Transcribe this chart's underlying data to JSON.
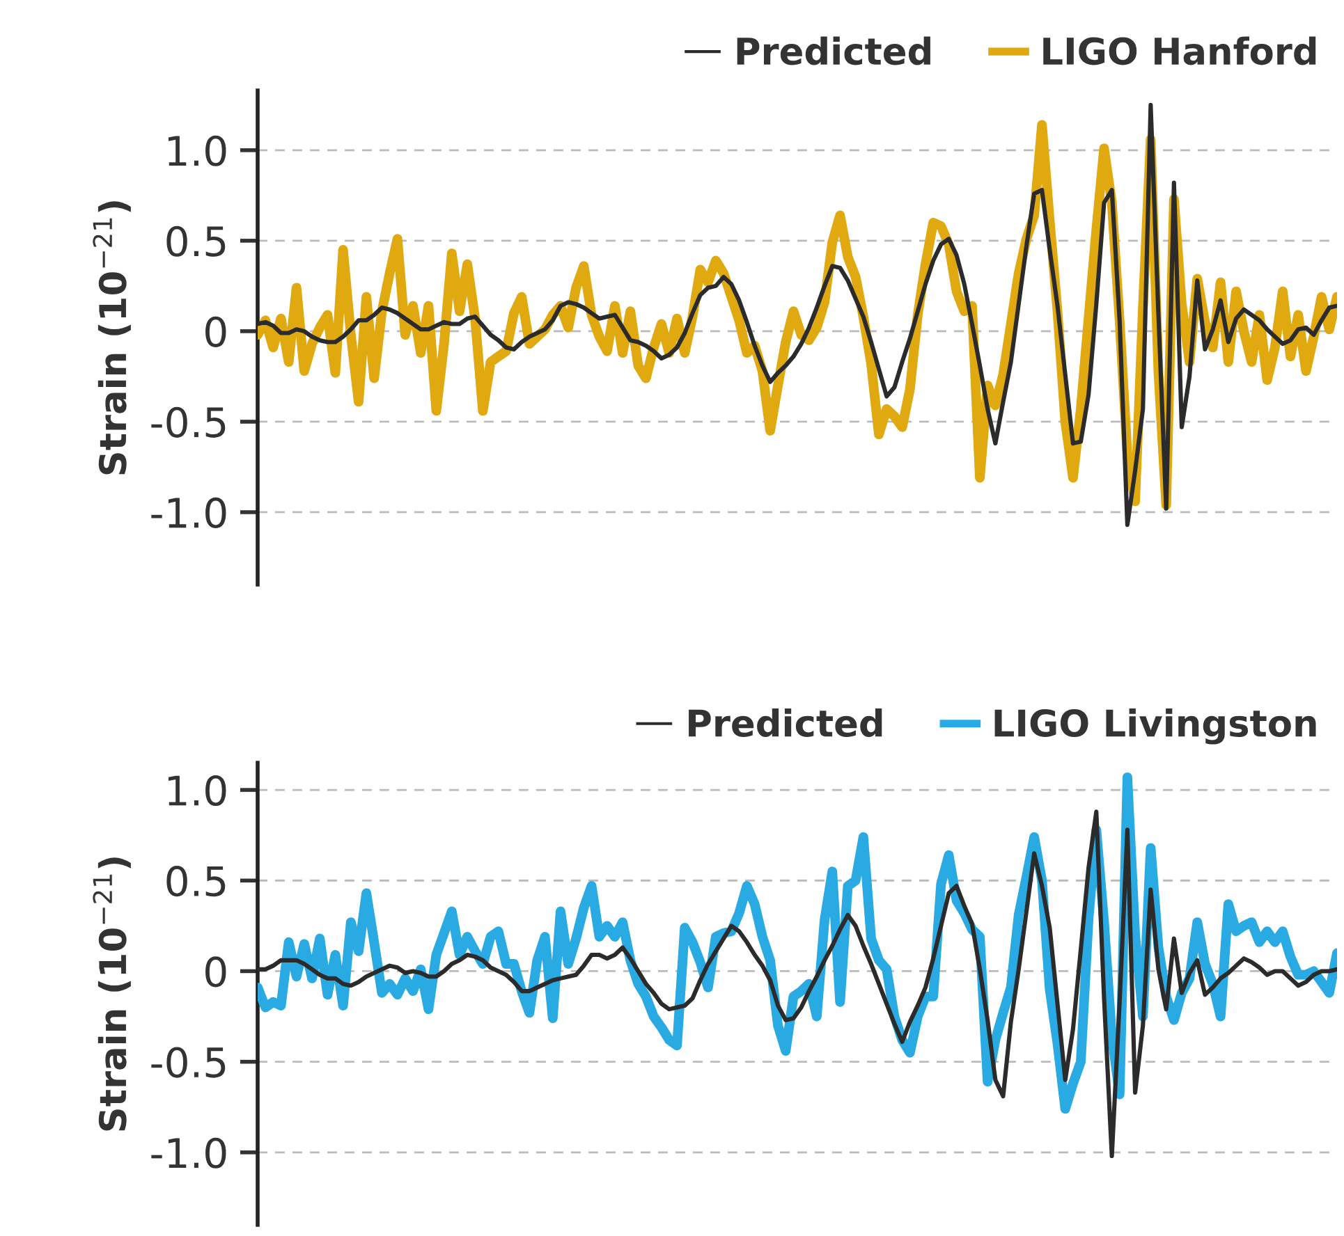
{
  "chart_data": [
    {
      "type": "line",
      "ylabel": "Strain (10$^{−21}$)",
      "ylim": [
        -1.4,
        1.33
      ],
      "categories": [
        null,
        null,
        null,
        null,
        null,
        null,
        null,
        null,
        null,
        null,
        null,
        null,
        null,
        null,
        null,
        null,
        null,
        null,
        null,
        null,
        null,
        null,
        null,
        null,
        null,
        null,
        null,
        null,
        null,
        null,
        null,
        null,
        null,
        null,
        null,
        null,
        null,
        null,
        null,
        null,
        null,
        null,
        null,
        null,
        null,
        null,
        null,
        null,
        null,
        null,
        null,
        null,
        null,
        null,
        null,
        null,
        null,
        null,
        null,
        null,
        null,
        null,
        null,
        null,
        null,
        null,
        null,
        null,
        null,
        null,
        null,
        null,
        null,
        null,
        null,
        null,
        null,
        null,
        null,
        null,
        null,
        null,
        null,
        null,
        null,
        null,
        null,
        null,
        null,
        null,
        null,
        null,
        null,
        null,
        null,
        null,
        null,
        null,
        null,
        null,
        null,
        null,
        null,
        null,
        null,
        null,
        null,
        null,
        null,
        null,
        null,
        null,
        null,
        null,
        null,
        null,
        null,
        null,
        null,
        null,
        null,
        null,
        null,
        null,
        null,
        null,
        null,
        null,
        null,
        null,
        null,
        null,
        null,
        null,
        null,
        null,
        null,
        null,
        null,
        null
      ],
      "yticks": [
        {
          "value": -1.0,
          "label": "-1.0"
        },
        {
          "value": -0.5,
          "label": "-0.5"
        },
        {
          "value": 0,
          "label": "0"
        },
        {
          "value": 0.5,
          "label": "0.5"
        },
        {
          "value": 1.0,
          "label": "1.0"
        }
      ],
      "tick_labels": "y",
      "grid": "y",
      "legend": "top right",
      "marker": "none",
      "line_style": "solid",
      "series": [
        {
          "name": "Predicted",
          "color": "#2b2b2b",
          "values": [
            0.04,
            0.05,
            0.03,
            -0.01,
            -0.01,
            0.01,
            0.0,
            -0.03,
            -0.05,
            -0.06,
            -0.06,
            -0.03,
            0.01,
            0.06,
            0.06,
            0.09,
            0.13,
            0.12,
            0.1,
            0.07,
            0.04,
            0.01,
            0.01,
            0.03,
            0.05,
            0.04,
            0.04,
            0.07,
            0.08,
            0.03,
            -0.02,
            -0.05,
            -0.09,
            -0.1,
            -0.06,
            -0.03,
            -0.01,
            0.01,
            0.06,
            0.14,
            0.16,
            0.15,
            0.13,
            0.1,
            0.07,
            0.08,
            0.09,
            0.02,
            -0.05,
            -0.06,
            -0.08,
            -0.11,
            -0.15,
            -0.13,
            -0.09,
            -0.01,
            0.1,
            0.2,
            0.24,
            0.25,
            0.3,
            0.26,
            0.17,
            0.05,
            -0.08,
            -0.19,
            -0.28,
            -0.23,
            -0.19,
            -0.14,
            -0.07,
            0.02,
            0.13,
            0.25,
            0.36,
            0.35,
            0.28,
            0.18,
            0.08,
            -0.06,
            -0.21,
            -0.36,
            -0.31,
            -0.17,
            -0.04,
            0.11,
            0.26,
            0.39,
            0.48,
            0.51,
            0.42,
            0.26,
            0.04,
            -0.19,
            -0.43,
            -0.62,
            -0.39,
            -0.17,
            0.15,
            0.47,
            0.76,
            0.78,
            0.45,
            0.14,
            -0.24,
            -0.62,
            -0.61,
            -0.35,
            0.15,
            0.71,
            0.78,
            0.06,
            -1.07,
            -0.77,
            -0.43,
            1.25,
            0.09,
            -0.98,
            0.82,
            -0.53,
            -0.25,
            0.28,
            -0.1,
            0.01,
            0.17,
            -0.06,
            0.07,
            0.12,
            0.09,
            0.06,
            0.01,
            -0.03,
            -0.07,
            -0.05,
            0.01,
            0.02,
            -0.02,
            0.06,
            0.13,
            0.14
          ]
        },
        {
          "name": "LIGO Hanford",
          "color": "#e0a910",
          "values": [
            -0.02,
            0.06,
            -0.09,
            0.07,
            -0.17,
            0.24,
            -0.22,
            -0.07,
            0.02,
            0.09,
            -0.23,
            0.45,
            -0.02,
            -0.39,
            0.19,
            -0.26,
            0.11,
            0.32,
            0.51,
            -0.02,
            0.14,
            -0.12,
            0.14,
            -0.44,
            -0.07,
            0.43,
            0.11,
            0.37,
            0.07,
            -0.44,
            -0.17,
            -0.14,
            -0.11,
            0.1,
            0.19,
            -0.07,
            -0.03,
            0.01,
            0.09,
            0.14,
            0.02,
            0.24,
            0.36,
            0.09,
            -0.03,
            -0.11,
            0.14,
            -0.12,
            0.11,
            -0.19,
            -0.26,
            -0.09,
            0.04,
            -0.12,
            0.07,
            -0.12,
            0.08,
            0.34,
            0.27,
            0.39,
            0.32,
            0.19,
            0.06,
            -0.12,
            -0.08,
            -0.22,
            -0.55,
            -0.3,
            -0.06,
            0.11,
            -0.02,
            -0.05,
            0.02,
            0.16,
            0.49,
            0.64,
            0.41,
            0.3,
            0.08,
            -0.18,
            -0.57,
            -0.43,
            -0.47,
            -0.53,
            -0.32,
            0.09,
            0.37,
            0.6,
            0.58,
            0.48,
            0.22,
            0.11,
            0.14,
            -0.81,
            -0.3,
            -0.41,
            -0.24,
            0.04,
            0.32,
            0.51,
            0.64,
            1.14,
            0.61,
            0.11,
            -0.5,
            -0.81,
            -0.43,
            0.07,
            0.56,
            1.01,
            0.71,
            0.06,
            -0.68,
            -0.94,
            0.13,
            1.06,
            -0.23,
            -0.96,
            0.73,
            0.15,
            -0.17,
            0.29,
            0.05,
            -0.09,
            0.27,
            -0.17,
            0.22,
            0.0,
            -0.17,
            0.09,
            -0.27,
            -0.09,
            0.22,
            -0.14,
            0.09,
            -0.22,
            -0.03,
            0.19,
            0.01,
            0.19
          ]
        }
      ]
    },
    {
      "type": "line",
      "ylabel": "Strain (10$^{−21}$)",
      "ylim": [
        -1.4,
        1.15
      ],
      "categories": [
        null,
        null,
        null,
        null,
        null,
        null,
        null,
        null,
        null,
        null,
        null,
        null,
        null,
        null,
        null,
        null,
        null,
        null,
        null,
        null,
        null,
        null,
        null,
        null,
        null,
        null,
        null,
        null,
        null,
        null,
        null,
        null,
        null,
        null,
        null,
        null,
        null,
        null,
        null,
        null,
        null,
        null,
        null,
        null,
        null,
        null,
        null,
        null,
        null,
        null,
        null,
        null,
        null,
        null,
        null,
        null,
        null,
        null,
        null,
        null,
        null,
        null,
        null,
        null,
        null,
        null,
        null,
        null,
        null,
        null,
        null,
        null,
        null,
        null,
        null,
        null,
        null,
        null,
        null,
        null,
        null,
        null,
        null,
        null,
        null,
        null,
        null,
        null,
        null,
        null,
        null,
        null,
        null,
        null,
        null,
        null,
        null,
        null,
        null,
        null,
        null,
        null,
        null,
        null,
        null,
        null,
        null,
        null,
        null,
        null,
        null,
        null,
        null,
        null,
        null,
        null,
        null,
        null,
        null,
        null,
        null,
        null,
        null,
        null,
        null,
        null,
        null,
        null,
        null,
        null,
        null,
        null,
        null,
        null,
        null,
        null,
        null,
        null,
        null,
        null
      ],
      "yticks": [
        {
          "value": -1.0,
          "label": "-1.0"
        },
        {
          "value": -0.5,
          "label": "-0.5"
        },
        {
          "value": 0,
          "label": "0"
        },
        {
          "value": 0.5,
          "label": "0.5"
        },
        {
          "value": 1.0,
          "label": "1.0"
        }
      ],
      "tick_labels": "y",
      "grid": "y",
      "legend": "top right",
      "marker": "none",
      "line_style": "solid",
      "series": [
        {
          "name": "Predicted",
          "color": "#2b2b2b",
          "values": [
            0.01,
            0.01,
            0.03,
            0.06,
            0.06,
            0.06,
            0.04,
            0.01,
            -0.02,
            -0.04,
            -0.04,
            -0.07,
            -0.08,
            -0.06,
            -0.03,
            -0.01,
            0.01,
            0.03,
            0.02,
            -0.01,
            0.0,
            -0.01,
            -0.03,
            -0.03,
            0.0,
            0.04,
            0.06,
            0.09,
            0.08,
            0.06,
            0.02,
            0.0,
            -0.02,
            -0.06,
            -0.11,
            -0.11,
            -0.09,
            -0.07,
            -0.05,
            -0.04,
            -0.03,
            -0.02,
            0.03,
            0.09,
            0.09,
            0.07,
            0.09,
            0.13,
            0.07,
            0.0,
            -0.07,
            -0.12,
            -0.18,
            -0.21,
            -0.2,
            -0.19,
            -0.15,
            -0.05,
            0.04,
            0.11,
            0.18,
            0.25,
            0.22,
            0.16,
            0.09,
            0.03,
            -0.05,
            -0.19,
            -0.27,
            -0.26,
            -0.2,
            -0.11,
            -0.03,
            0.06,
            0.14,
            0.23,
            0.31,
            0.25,
            0.14,
            0.04,
            -0.07,
            -0.18,
            -0.29,
            -0.39,
            -0.28,
            -0.19,
            -0.09,
            0.07,
            0.25,
            0.43,
            0.47,
            0.36,
            0.26,
            0.01,
            -0.27,
            -0.6,
            -0.69,
            -0.28,
            0.01,
            0.33,
            0.65,
            0.47,
            0.24,
            -0.18,
            -0.6,
            -0.32,
            0.12,
            0.57,
            0.88,
            -0.15,
            -1.02,
            -0.17,
            0.78,
            -0.67,
            -0.3,
            0.45,
            0.01,
            -0.21,
            0.18,
            -0.12,
            -0.01,
            0.06,
            -0.13,
            -0.09,
            -0.04,
            -0.01,
            0.03,
            0.07,
            0.05,
            0.02,
            -0.02,
            0.0,
            0.0,
            -0.04,
            -0.08,
            -0.06,
            -0.02,
            0.0,
            0.0,
            0.01
          ]
        },
        {
          "name": "LIGO Livingston",
          "color": "#2aaae2",
          "values": [
            -0.09,
            -0.2,
            -0.17,
            -0.19,
            0.16,
            -0.03,
            0.15,
            -0.04,
            0.18,
            -0.13,
            0.09,
            -0.19,
            0.27,
            0.11,
            0.43,
            0.16,
            -0.12,
            -0.07,
            -0.13,
            -0.04,
            -0.11,
            0.01,
            -0.21,
            0.09,
            0.21,
            0.33,
            0.09,
            0.19,
            0.11,
            0.04,
            0.19,
            0.22,
            0.04,
            0.04,
            -0.11,
            -0.23,
            0.06,
            0.19,
            -0.26,
            0.33,
            0.04,
            0.18,
            0.35,
            0.47,
            0.19,
            0.25,
            0.19,
            0.27,
            0.06,
            -0.07,
            -0.14,
            -0.25,
            -0.31,
            -0.38,
            -0.41,
            0.24,
            0.16,
            0.05,
            -0.09,
            0.19,
            0.21,
            0.22,
            0.32,
            0.47,
            0.37,
            0.19,
            0.06,
            -0.3,
            -0.44,
            -0.14,
            -0.11,
            -0.07,
            -0.25,
            0.28,
            0.55,
            -0.17,
            0.47,
            0.5,
            0.74,
            0.18,
            0.06,
            0.01,
            -0.25,
            -0.38,
            -0.45,
            -0.25,
            -0.14,
            -0.14,
            0.48,
            0.64,
            0.39,
            0.32,
            0.23,
            0.19,
            -0.61,
            -0.38,
            -0.23,
            -0.09,
            0.31,
            0.52,
            0.74,
            0.5,
            -0.1,
            -0.4,
            -0.76,
            -0.62,
            -0.5,
            0.29,
            0.78,
            0.27,
            -0.36,
            -0.68,
            1.07,
            0.2,
            -0.25,
            0.68,
            0.13,
            -0.14,
            -0.27,
            -0.12,
            -0.04,
            0.27,
            0.04,
            -0.07,
            -0.25,
            0.37,
            0.22,
            0.25,
            0.27,
            0.16,
            0.22,
            0.16,
            0.22,
            0.08,
            -0.02,
            -0.02,
            0.0,
            -0.06,
            -0.12,
            0.1
          ]
        }
      ]
    }
  ]
}
